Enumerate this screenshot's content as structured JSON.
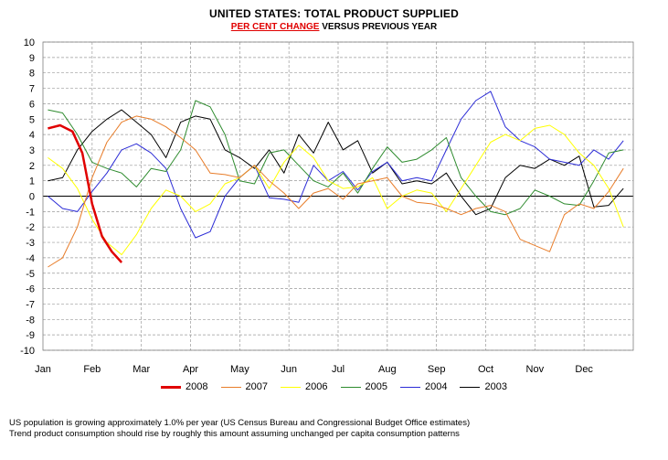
{
  "header": {
    "title": "UNITED STATES:  TOTAL PRODUCT SUPPLIED",
    "subtitle_highlight": "PER CENT CHANGE",
    "subtitle_rest": " VERSUS PREVIOUS YEAR"
  },
  "footnotes": [
    "US population is growing approximately 1.0% per year (US Census Bureau and Congressional Budget Office estimates)",
    "Trend product consumption should rise by roughly this amount assuming unchanged per capita consumption patterns"
  ],
  "chart_data": {
    "type": "line",
    "title": "UNITED STATES:  TOTAL PRODUCT SUPPLIED",
    "subtitle": "PER CENT CHANGE VERSUS PREVIOUS YEAR",
    "xlabel": "",
    "ylabel": "",
    "ylim": [
      -10,
      10
    ],
    "yticks": [
      10,
      9,
      8,
      7,
      6,
      5,
      4,
      3,
      2,
      1,
      0,
      -1,
      -2,
      -3,
      -4,
      -5,
      -6,
      -7,
      -8,
      -9,
      -10
    ],
    "xlim": [
      0,
      12
    ],
    "categories": [
      "Jan",
      "Feb",
      "Mar",
      "Apr",
      "May",
      "Jun",
      "Jul",
      "Aug",
      "Sep",
      "Oct",
      "Nov",
      "Dec"
    ],
    "grid": true,
    "legend_position": "bottom",
    "x_unit": "months from start of January",
    "series": [
      {
        "name": "2008",
        "color": "#e00000",
        "width": 2.5,
        "x": [
          0.1,
          0.35,
          0.6,
          0.8,
          1.0,
          1.2,
          1.4,
          1.6
        ],
        "y": [
          4.4,
          4.6,
          4.2,
          2.8,
          -0.5,
          -2.6,
          -3.6,
          -4.3
        ]
      },
      {
        "name": "2007",
        "color": "#e87d2a",
        "width": 1,
        "x": [
          0.1,
          0.4,
          0.7,
          1.0,
          1.3,
          1.6,
          1.9,
          2.2,
          2.5,
          2.8,
          3.1,
          3.4,
          3.7,
          4.0,
          4.3,
          4.6,
          4.9,
          5.2,
          5.5,
          5.8,
          6.1,
          6.4,
          6.7,
          7.0,
          7.3,
          7.6,
          7.9,
          8.2,
          8.5,
          8.8,
          9.1,
          9.4,
          9.7,
          10.0,
          10.3,
          10.6,
          10.9,
          11.2,
          11.5,
          11.8
        ],
        "y": [
          -4.6,
          -4.0,
          -2.0,
          1.2,
          3.5,
          4.8,
          5.2,
          5.0,
          4.5,
          3.8,
          3.0,
          1.5,
          1.4,
          1.2,
          2.0,
          1.0,
          0.2,
          -0.8,
          0.2,
          0.5,
          -0.2,
          0.8,
          1.0,
          1.2,
          0.0,
          -0.4,
          -0.5,
          -0.8,
          -1.2,
          -0.8,
          -0.6,
          -1.0,
          -2.8,
          -3.2,
          -3.6,
          -1.2,
          -0.5,
          -0.8,
          0.3,
          1.8
        ]
      },
      {
        "name": "2006",
        "color": "#ffff00",
        "width": 1,
        "x": [
          0.1,
          0.4,
          0.7,
          1.0,
          1.3,
          1.6,
          1.9,
          2.2,
          2.5,
          2.8,
          3.1,
          3.4,
          3.7,
          4.0,
          4.3,
          4.6,
          4.9,
          5.2,
          5.5,
          5.8,
          6.1,
          6.4,
          6.7,
          7.0,
          7.3,
          7.6,
          7.9,
          8.2,
          8.5,
          8.8,
          9.1,
          9.4,
          9.7,
          10.0,
          10.3,
          10.6,
          10.9,
          11.2,
          11.5,
          11.8
        ],
        "y": [
          2.5,
          1.8,
          0.5,
          -1.5,
          -3.0,
          -3.8,
          -2.5,
          -0.8,
          0.4,
          0.0,
          -1.0,
          -0.5,
          0.8,
          1.2,
          2.0,
          0.5,
          2.2,
          3.3,
          2.5,
          1.0,
          0.5,
          0.6,
          1.2,
          -0.8,
          0.0,
          0.4,
          0.2,
          -1.0,
          0.5,
          2.0,
          3.5,
          4.0,
          3.6,
          4.4,
          4.6,
          4.0,
          2.8,
          2.0,
          0.5,
          -2.0
        ]
      },
      {
        "name": "2005",
        "color": "#2e8b2e",
        "width": 1,
        "x": [
          0.1,
          0.4,
          0.7,
          1.0,
          1.3,
          1.6,
          1.9,
          2.2,
          2.5,
          2.8,
          3.1,
          3.4,
          3.7,
          4.0,
          4.3,
          4.6,
          4.9,
          5.2,
          5.5,
          5.8,
          6.1,
          6.4,
          6.7,
          7.0,
          7.3,
          7.6,
          7.9,
          8.2,
          8.5,
          8.8,
          9.1,
          9.4,
          9.7,
          10.0,
          10.3,
          10.6,
          10.9,
          11.2,
          11.5,
          11.8
        ],
        "y": [
          5.6,
          5.4,
          4.0,
          2.2,
          1.8,
          1.5,
          0.6,
          1.8,
          1.6,
          3.0,
          6.2,
          5.8,
          4.0,
          1.0,
          0.8,
          2.8,
          3.0,
          2.0,
          1.0,
          0.6,
          1.5,
          0.2,
          1.8,
          3.2,
          2.2,
          2.4,
          3.0,
          3.8,
          1.2,
          0.0,
          -1.0,
          -1.2,
          -0.8,
          0.4,
          0.0,
          -0.5,
          -0.6,
          1.0,
          2.8,
          3.0
        ]
      },
      {
        "name": "2004",
        "color": "#2b2bd6",
        "width": 1,
        "x": [
          0.1,
          0.4,
          0.7,
          1.0,
          1.3,
          1.6,
          1.9,
          2.2,
          2.5,
          2.8,
          3.1,
          3.4,
          3.7,
          4.0,
          4.3,
          4.6,
          4.9,
          5.2,
          5.5,
          5.8,
          6.1,
          6.4,
          6.7,
          7.0,
          7.3,
          7.6,
          7.9,
          8.2,
          8.5,
          8.8,
          9.1,
          9.4,
          9.7,
          10.0,
          10.3,
          10.6,
          10.9,
          11.2,
          11.5,
          11.8
        ],
        "y": [
          0.0,
          -0.8,
          -1.0,
          0.3,
          1.5,
          3.0,
          3.4,
          2.8,
          1.8,
          -0.8,
          -2.7,
          -2.3,
          0.0,
          1.2,
          2.0,
          -0.1,
          -0.2,
          -0.4,
          2.0,
          1.0,
          1.6,
          0.4,
          1.6,
          2.2,
          1.0,
          1.2,
          1.0,
          3.0,
          5.0,
          6.2,
          6.8,
          4.5,
          3.6,
          3.2,
          2.4,
          2.2,
          2.0,
          3.0,
          2.4,
          3.6
        ]
      },
      {
        "name": "2003",
        "color": "#000000",
        "width": 1,
        "x": [
          0.1,
          0.4,
          0.7,
          1.0,
          1.3,
          1.6,
          1.9,
          2.2,
          2.5,
          2.8,
          3.1,
          3.4,
          3.7,
          4.0,
          4.3,
          4.6,
          4.9,
          5.2,
          5.5,
          5.8,
          6.1,
          6.4,
          6.7,
          7.0,
          7.3,
          7.6,
          7.9,
          8.2,
          8.5,
          8.8,
          9.1,
          9.4,
          9.7,
          10.0,
          10.3,
          10.6,
          10.9,
          11.2,
          11.5,
          11.8
        ],
        "y": [
          1.0,
          1.2,
          3.0,
          4.2,
          5.0,
          5.6,
          4.8,
          4.0,
          2.5,
          4.8,
          5.2,
          5.0,
          3.0,
          2.5,
          1.8,
          3.0,
          1.5,
          4.0,
          2.8,
          4.8,
          3.0,
          3.6,
          1.5,
          2.2,
          0.8,
          1.0,
          0.8,
          1.5,
          0.0,
          -1.2,
          -0.8,
          1.2,
          2.0,
          1.8,
          2.4,
          2.0,
          2.6,
          -0.7,
          -0.6,
          0.5
        ]
      }
    ]
  }
}
